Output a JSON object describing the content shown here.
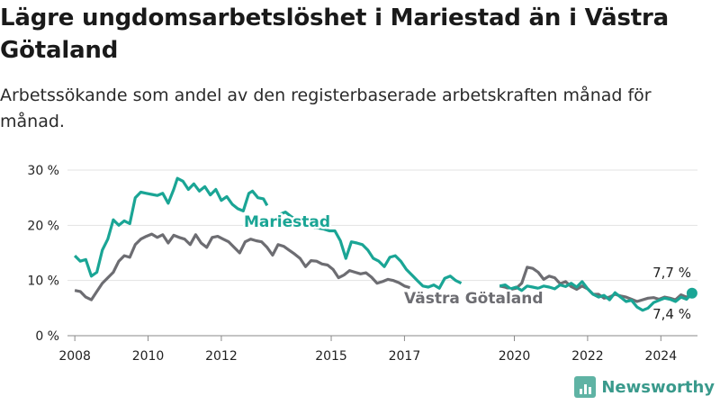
{
  "header": {
    "title": "Lägre ungdomsarbetslöshet i Mariestad än i Västra Götaland",
    "subtitle": "Arbetssökande som andel av den registerbaserade arbetskraften månad för månad."
  },
  "brand": {
    "name": "Newsworthy",
    "icon": "bar-chart-icon"
  },
  "chart_data": {
    "type": "line",
    "ylim": [
      0,
      30
    ],
    "xlim": [
      2007.8,
      2025.0
    ],
    "y_ticks": [
      {
        "value": 0,
        "label": "0 %"
      },
      {
        "value": 10,
        "label": "10 %"
      },
      {
        "value": 20,
        "label": "20 %"
      },
      {
        "value": 30,
        "label": "30 %"
      }
    ],
    "x_ticks": [
      {
        "value": 2008,
        "label": "2008"
      },
      {
        "value": 2010,
        "label": "2010"
      },
      {
        "value": 2012,
        "label": "2012"
      },
      {
        "value": 2015,
        "label": "2015"
      },
      {
        "value": 2017,
        "label": "2017"
      },
      {
        "value": 2020,
        "label": "2020"
      },
      {
        "value": 2022,
        "label": "2022"
      },
      {
        "value": 2024,
        "label": "2024"
      }
    ],
    "grid": true,
    "series": [
      {
        "name": "Mariestad",
        "color": "#1aa595",
        "end_label": "7,7 %",
        "points": [
          [
            2008.0,
            14.5
          ],
          [
            2008.15,
            13.5
          ],
          [
            2008.3,
            13.8
          ],
          [
            2008.45,
            10.8
          ],
          [
            2008.6,
            11.5
          ],
          [
            2008.75,
            15.5
          ],
          [
            2008.9,
            17.5
          ],
          [
            2009.05,
            21.0
          ],
          [
            2009.2,
            20.0
          ],
          [
            2009.35,
            20.8
          ],
          [
            2009.5,
            20.3
          ],
          [
            2009.65,
            25.0
          ],
          [
            2009.8,
            26.0
          ],
          [
            2009.95,
            25.8
          ],
          [
            2010.1,
            25.6
          ],
          [
            2010.25,
            25.4
          ],
          [
            2010.4,
            25.8
          ],
          [
            2010.55,
            24.0
          ],
          [
            2010.7,
            26.5
          ],
          [
            2010.8,
            28.5
          ],
          [
            2010.95,
            28.0
          ],
          [
            2011.1,
            26.5
          ],
          [
            2011.25,
            27.5
          ],
          [
            2011.4,
            26.2
          ],
          [
            2011.55,
            27.0
          ],
          [
            2011.7,
            25.5
          ],
          [
            2011.85,
            26.5
          ],
          [
            2012.0,
            24.5
          ],
          [
            2012.15,
            25.2
          ],
          [
            2012.3,
            23.8
          ],
          [
            2012.45,
            23.0
          ],
          [
            2012.6,
            22.6
          ],
          [
            2012.75,
            25.8
          ],
          [
            2012.85,
            26.2
          ],
          [
            2013.0,
            25.0
          ],
          [
            2013.15,
            24.8
          ],
          [
            2013.25,
            23.6
          ]
        ],
        "segments_after_label": [
          [
            2013.6,
            22.0
          ],
          [
            2013.75,
            22.4
          ],
          [
            2013.9,
            21.6
          ],
          [
            2014.05,
            21.0
          ],
          [
            2014.2,
            21.4
          ],
          [
            2014.35,
            20.4
          ],
          [
            2014.5,
            19.6
          ],
          [
            2014.65,
            19.5
          ],
          [
            2014.8,
            19.3
          ],
          [
            2014.95,
            19.0
          ],
          [
            2015.1,
            19.0
          ],
          [
            2015.25,
            17.2
          ],
          [
            2015.4,
            14.0
          ],
          [
            2015.55,
            17.0
          ],
          [
            2015.7,
            16.8
          ],
          [
            2015.85,
            16.5
          ],
          [
            2016.0,
            15.5
          ],
          [
            2016.15,
            14.0
          ],
          [
            2016.3,
            13.5
          ],
          [
            2016.45,
            12.5
          ],
          [
            2016.6,
            14.2
          ],
          [
            2016.75,
            14.5
          ],
          [
            2016.9,
            13.5
          ],
          [
            2017.05,
            12.0
          ],
          [
            2017.2,
            11.0
          ],
          [
            2017.35,
            10.0
          ],
          [
            2017.5,
            9.0
          ],
          [
            2017.65,
            8.8
          ],
          [
            2017.8,
            9.2
          ],
          [
            2017.95,
            8.6
          ],
          [
            2018.1,
            10.4
          ],
          [
            2018.25,
            10.8
          ],
          [
            2018.4,
            10.0
          ],
          [
            2018.55,
            9.5
          ]
        ],
        "segments_after_label2": [
          [
            2019.6,
            9.0
          ],
          [
            2019.75,
            9.2
          ],
          [
            2019.9,
            8.5
          ],
          [
            2020.05,
            8.8
          ],
          [
            2020.2,
            8.2
          ],
          [
            2020.35,
            9.0
          ],
          [
            2020.5,
            8.8
          ],
          [
            2020.65,
            8.6
          ],
          [
            2020.8,
            9.0
          ],
          [
            2020.95,
            8.8
          ],
          [
            2021.1,
            8.5
          ],
          [
            2021.25,
            9.2
          ],
          [
            2021.4,
            8.9
          ],
          [
            2021.55,
            9.5
          ],
          [
            2021.7,
            8.8
          ],
          [
            2021.85,
            9.8
          ],
          [
            2022.0,
            8.5
          ],
          [
            2022.15,
            7.5
          ],
          [
            2022.3,
            7.0
          ],
          [
            2022.45,
            7.3
          ],
          [
            2022.6,
            6.5
          ],
          [
            2022.75,
            7.8
          ],
          [
            2022.9,
            7.0
          ],
          [
            2023.05,
            6.2
          ],
          [
            2023.2,
            6.4
          ],
          [
            2023.35,
            5.2
          ],
          [
            2023.5,
            4.6
          ],
          [
            2023.65,
            5.0
          ],
          [
            2023.8,
            6.0
          ],
          [
            2023.95,
            6.4
          ],
          [
            2024.1,
            6.8
          ],
          [
            2024.25,
            6.6
          ],
          [
            2024.4,
            6.2
          ],
          [
            2024.55,
            7.0
          ],
          [
            2024.7,
            6.6
          ],
          [
            2024.85,
            7.7
          ]
        ]
      },
      {
        "name": "Västra Götaland",
        "color": "#6d6d72",
        "end_label": "7,4 %",
        "points": [
          [
            2008.0,
            8.2
          ],
          [
            2008.15,
            8.0
          ],
          [
            2008.3,
            7.0
          ],
          [
            2008.45,
            6.5
          ],
          [
            2008.6,
            8.0
          ],
          [
            2008.75,
            9.5
          ],
          [
            2008.9,
            10.5
          ],
          [
            2009.05,
            11.5
          ],
          [
            2009.2,
            13.5
          ],
          [
            2009.35,
            14.5
          ],
          [
            2009.5,
            14.2
          ],
          [
            2009.65,
            16.5
          ],
          [
            2009.8,
            17.5
          ],
          [
            2009.95,
            18.0
          ],
          [
            2010.1,
            18.4
          ],
          [
            2010.25,
            17.8
          ],
          [
            2010.4,
            18.3
          ],
          [
            2010.55,
            16.8
          ],
          [
            2010.7,
            18.2
          ],
          [
            2010.85,
            17.8
          ],
          [
            2011.0,
            17.5
          ],
          [
            2011.15,
            16.5
          ],
          [
            2011.3,
            18.3
          ],
          [
            2011.45,
            16.8
          ],
          [
            2011.6,
            16.0
          ],
          [
            2011.75,
            17.8
          ],
          [
            2011.9,
            18.0
          ],
          [
            2012.05,
            17.5
          ],
          [
            2012.2,
            17.0
          ],
          [
            2012.35,
            16.0
          ],
          [
            2012.5,
            15.0
          ],
          [
            2012.65,
            17.0
          ],
          [
            2012.8,
            17.5
          ],
          [
            2012.95,
            17.2
          ],
          [
            2013.1,
            17.0
          ],
          [
            2013.25,
            16.0
          ],
          [
            2013.4,
            14.6
          ],
          [
            2013.55,
            16.5
          ],
          [
            2013.7,
            16.2
          ],
          [
            2013.85,
            15.5
          ],
          [
            2014.0,
            14.8
          ],
          [
            2014.15,
            14.0
          ],
          [
            2014.3,
            12.5
          ],
          [
            2014.45,
            13.6
          ],
          [
            2014.6,
            13.5
          ],
          [
            2014.75,
            13.0
          ],
          [
            2014.9,
            12.8
          ],
          [
            2015.05,
            12.0
          ],
          [
            2015.2,
            10.5
          ],
          [
            2015.35,
            11.0
          ],
          [
            2015.5,
            11.8
          ],
          [
            2015.65,
            11.5
          ],
          [
            2015.8,
            11.2
          ],
          [
            2015.95,
            11.4
          ],
          [
            2016.1,
            10.6
          ],
          [
            2016.25,
            9.5
          ],
          [
            2016.4,
            9.8
          ],
          [
            2016.55,
            10.2
          ],
          [
            2016.7,
            10.0
          ],
          [
            2016.85,
            9.6
          ],
          [
            2017.0,
            9.0
          ],
          [
            2017.15,
            8.7
          ]
        ],
        "points2": [
          [
            2019.6,
            9.0
          ],
          [
            2019.75,
            8.8
          ],
          [
            2019.9,
            8.4
          ],
          [
            2020.05,
            8.6
          ],
          [
            2020.2,
            9.5
          ],
          [
            2020.35,
            12.4
          ],
          [
            2020.5,
            12.2
          ],
          [
            2020.65,
            11.5
          ],
          [
            2020.8,
            10.2
          ],
          [
            2020.95,
            10.8
          ],
          [
            2021.1,
            10.5
          ],
          [
            2021.25,
            9.4
          ],
          [
            2021.4,
            9.8
          ],
          [
            2021.55,
            8.9
          ],
          [
            2021.7,
            8.4
          ],
          [
            2021.85,
            9.0
          ],
          [
            2022.0,
            8.5
          ],
          [
            2022.15,
            7.5
          ],
          [
            2022.3,
            7.5
          ],
          [
            2022.45,
            6.8
          ],
          [
            2022.6,
            7.0
          ],
          [
            2022.75,
            7.5
          ],
          [
            2022.9,
            7.2
          ],
          [
            2023.05,
            7.0
          ],
          [
            2023.2,
            6.6
          ],
          [
            2023.35,
            6.2
          ],
          [
            2023.5,
            6.5
          ],
          [
            2023.65,
            6.8
          ],
          [
            2023.8,
            6.9
          ],
          [
            2023.95,
            6.6
          ],
          [
            2024.1,
            7.0
          ],
          [
            2024.25,
            6.8
          ],
          [
            2024.4,
            6.5
          ],
          [
            2024.55,
            7.4
          ],
          [
            2024.7,
            7.0
          ],
          [
            2024.85,
            7.4
          ]
        ]
      }
    ]
  }
}
